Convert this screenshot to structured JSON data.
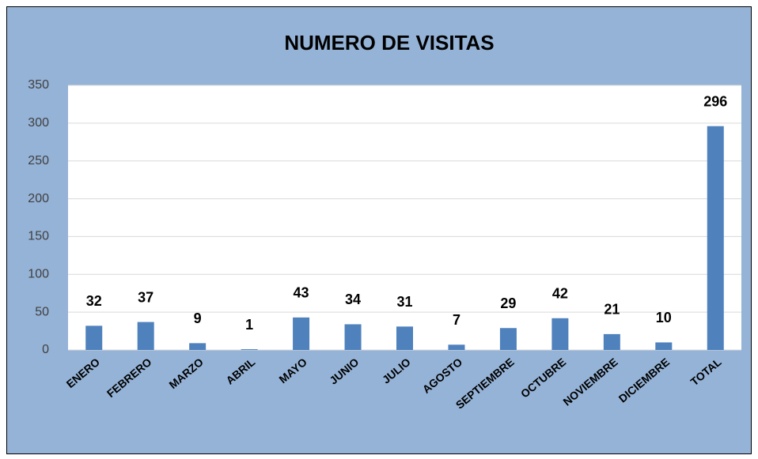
{
  "chart_data": {
    "type": "bar",
    "title": "NUMERO DE VISITAS",
    "categories": [
      "ENERO",
      "FEBRERO",
      "MARZO",
      "ABRIL",
      "MAYO",
      "JUNIO",
      "JULIO",
      "AGOSTO",
      "SEPTIEMBRE",
      "OCTUBRE",
      "NOVIEMBRE",
      "DICIEMBRE",
      "TOTAL"
    ],
    "values": [
      32,
      37,
      9,
      1,
      43,
      34,
      31,
      7,
      29,
      42,
      21,
      10,
      296
    ],
    "color": "#4f81bd",
    "ylim": [
      0,
      350
    ],
    "yticks": [
      0,
      50,
      100,
      150,
      200,
      250,
      300,
      350
    ],
    "grid": true
  }
}
